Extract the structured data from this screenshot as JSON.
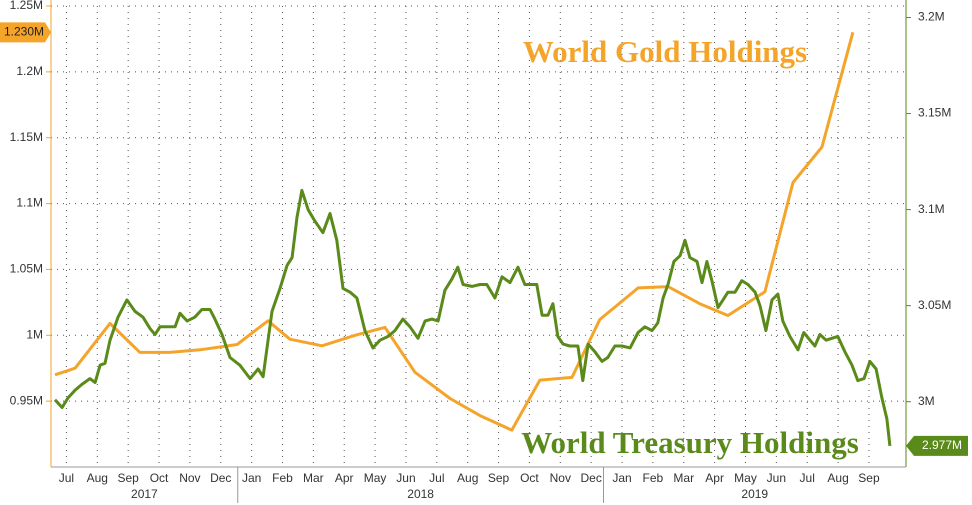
{
  "chart_data": {
    "type": "line",
    "annotations": [
      {
        "text": "World Gold Holdings",
        "color": "#f5a42a"
      },
      {
        "text": "World Treasury Holdings",
        "color": "#5a8a1a"
      }
    ],
    "xlim": [
      0,
      27.7
    ],
    "xticks": [
      {
        "value": 0.5,
        "label": "Jul"
      },
      {
        "value": 1.5,
        "label": "Aug"
      },
      {
        "value": 2.5,
        "label": "Sep"
      },
      {
        "value": 3.5,
        "label": "Oct"
      },
      {
        "value": 4.5,
        "label": "Nov"
      },
      {
        "value": 5.5,
        "label": "Dec"
      },
      {
        "value": 6.5,
        "label": "Jan"
      },
      {
        "value": 7.5,
        "label": "Feb"
      },
      {
        "value": 8.5,
        "label": "Mar"
      },
      {
        "value": 9.5,
        "label": "Apr"
      },
      {
        "value": 10.5,
        "label": "May"
      },
      {
        "value": 11.5,
        "label": "Jun"
      },
      {
        "value": 12.5,
        "label": "Jul"
      },
      {
        "value": 13.5,
        "label": "Aug"
      },
      {
        "value": 14.5,
        "label": "Sep"
      },
      {
        "value": 15.5,
        "label": "Oct"
      },
      {
        "value": 16.5,
        "label": "Nov"
      },
      {
        "value": 17.5,
        "label": "Dec"
      },
      {
        "value": 18.5,
        "label": "Jan"
      },
      {
        "value": 19.5,
        "label": "Feb"
      },
      {
        "value": 20.5,
        "label": "Mar"
      },
      {
        "value": 21.5,
        "label": "Apr"
      },
      {
        "value": 22.5,
        "label": "May"
      },
      {
        "value": 23.5,
        "label": "Jun"
      },
      {
        "value": 24.5,
        "label": "Jul"
      },
      {
        "value": 25.5,
        "label": "Aug"
      },
      {
        "value": 26.5,
        "label": "Sep"
      }
    ],
    "year_groups": [
      {
        "label": "2017",
        "start": 0,
        "end": 6.05
      },
      {
        "label": "2018",
        "start": 6.05,
        "end": 17.9
      },
      {
        "label": "2019",
        "start": 17.9,
        "end": 27.7
      }
    ],
    "ylim": [
      0.9,
      1.25
    ],
    "yticks": [
      {
        "value": 0.95,
        "label": "0.95M"
      },
      {
        "value": 1,
        "label": "1M"
      },
      {
        "value": 1.05,
        "label": "1.05M"
      },
      {
        "value": 1.1,
        "label": "1.1M"
      },
      {
        "value": 1.15,
        "label": "1.15M"
      },
      {
        "value": 1.2,
        "label": "1.2M"
      },
      {
        "value": 1.25,
        "label": "1.25M"
      }
    ],
    "y2lim": [
      2.966,
      3.206
    ],
    "y2ticks": [
      {
        "value": 3,
        "label": "3M"
      },
      {
        "value": 3.05,
        "label": "3.05M"
      },
      {
        "value": 3.1,
        "label": "3.1M"
      },
      {
        "value": 3.15,
        "label": "3.15M"
      },
      {
        "value": 3.2,
        "label": "3.2M"
      }
    ],
    "grid": true,
    "series": [
      {
        "name": "World Gold Holdings",
        "color": "#f5a42a",
        "axis": "y",
        "end_label": "1.230M",
        "x": [
          0.13,
          0.78,
          1.91,
          2.88,
          3.85,
          4.83,
          6.03,
          7.03,
          7.74,
          8.78,
          9.85,
          10.82,
          11.79,
          12.93,
          13.9,
          14.93,
          15.84,
          16.88,
          17.78,
          19.02,
          19.99,
          21.02,
          21.93,
          23.13,
          24.04,
          24.98,
          25.98
        ],
        "values": [
          0.97,
          0.975,
          1.009,
          0.987,
          0.987,
          0.989,
          0.993,
          1.011,
          0.997,
          0.992,
          1.0,
          1.006,
          0.972,
          0.952,
          0.939,
          0.928,
          0.966,
          0.968,
          1.012,
          1.036,
          1.037,
          1.024,
          1.015,
          1.033,
          1.116,
          1.143,
          1.23
        ]
      },
      {
        "name": "World Treasury Holdings",
        "color": "#5a8a1a",
        "axis": "y2",
        "end_label": "2.977M",
        "x": [
          0.13,
          0.36,
          0.55,
          0.78,
          1.0,
          1.26,
          1.43,
          1.59,
          1.75,
          1.91,
          2.17,
          2.46,
          2.72,
          2.98,
          3.21,
          3.37,
          3.53,
          3.76,
          4.02,
          4.18,
          4.41,
          4.66,
          4.89,
          5.15,
          5.31,
          5.54,
          5.8,
          6.12,
          6.45,
          6.71,
          6.87,
          7.16,
          7.42,
          7.65,
          7.81,
          7.97,
          8.13,
          8.33,
          8.55,
          8.81,
          9.04,
          9.26,
          9.46,
          9.69,
          9.91,
          10.17,
          10.43,
          10.66,
          10.92,
          11.14,
          11.4,
          11.63,
          11.89,
          12.12,
          12.34,
          12.54,
          12.76,
          12.99,
          13.18,
          13.35,
          13.64,
          13.9,
          14.12,
          14.38,
          14.61,
          14.87,
          15.13,
          15.35,
          15.52,
          15.74,
          15.91,
          16.1,
          16.26,
          16.42,
          16.59,
          16.81,
          17.07,
          17.23,
          17.4,
          17.62,
          17.85,
          18.04,
          18.27,
          18.5,
          18.76,
          19.02,
          19.24,
          19.47,
          19.66,
          19.83,
          19.99,
          20.18,
          20.38,
          20.54,
          20.7,
          20.93,
          21.09,
          21.25,
          21.41,
          21.61,
          21.77,
          21.93,
          22.16,
          22.38,
          22.58,
          22.81,
          22.97,
          23.16,
          23.36,
          23.55,
          23.71,
          23.94,
          24.2,
          24.39,
          24.59,
          24.75,
          24.91,
          25.11,
          25.3,
          25.49,
          25.72,
          25.95,
          26.14,
          26.34,
          26.53,
          26.73,
          26.92,
          27.08,
          27.18
        ],
        "values": [
          3.001,
          2.997,
          3.002,
          3.006,
          3.009,
          3.012,
          3.01,
          3.019,
          3.02,
          3.032,
          3.044,
          3.053,
          3.047,
          3.044,
          3.038,
          3.035,
          3.039,
          3.039,
          3.039,
          3.046,
          3.042,
          3.044,
          3.048,
          3.048,
          3.043,
          3.035,
          3.023,
          3.019,
          3.012,
          3.017,
          3.013,
          3.047,
          3.059,
          3.071,
          3.075,
          3.096,
          3.11,
          3.1,
          3.094,
          3.088,
          3.098,
          3.084,
          3.059,
          3.057,
          3.054,
          3.037,
          3.028,
          3.032,
          3.034,
          3.037,
          3.043,
          3.039,
          3.033,
          3.042,
          3.043,
          3.042,
          3.058,
          3.064,
          3.07,
          3.061,
          3.06,
          3.061,
          3.061,
          3.054,
          3.065,
          3.062,
          3.07,
          3.061,
          3.061,
          3.061,
          3.045,
          3.045,
          3.051,
          3.034,
          3.03,
          3.029,
          3.029,
          3.011,
          3.03,
          3.026,
          3.021,
          3.023,
          3.029,
          3.029,
          3.028,
          3.036,
          3.039,
          3.037,
          3.041,
          3.054,
          3.061,
          3.073,
          3.076,
          3.084,
          3.075,
          3.073,
          3.062,
          3.073,
          3.063,
          3.049,
          3.053,
          3.057,
          3.057,
          3.063,
          3.061,
          3.057,
          3.05,
          3.037,
          3.053,
          3.056,
          3.042,
          3.034,
          3.027,
          3.036,
          3.032,
          3.029,
          3.035,
          3.032,
          3.033,
          3.034,
          3.026,
          3.019,
          3.011,
          3.012,
          3.021,
          3.017,
          3.002,
          2.991,
          2.977
        ]
      }
    ]
  }
}
